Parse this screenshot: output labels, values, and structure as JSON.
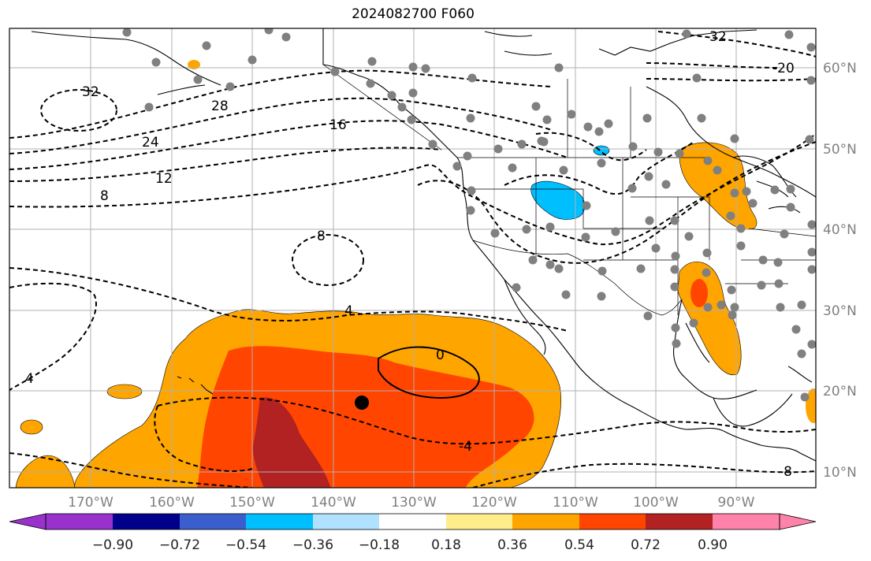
{
  "title": "2024082700 F060",
  "lon_labels": [
    "170°W",
    "160°W",
    "150°W",
    "140°W",
    "130°W",
    "120°W",
    "110°W",
    "100°W",
    "90°W"
  ],
  "lat_labels": [
    "60°N",
    "50°N",
    "40°N",
    "30°N",
    "20°N",
    "10°N"
  ],
  "colorbar": {
    "colors": [
      "#9932cc",
      "#00008b",
      "#3a5fcd",
      "#00bfff",
      "#b0e2ff",
      "#ffffff",
      "#ffec8b",
      "#ffa500",
      "#ff4500",
      "#b22222",
      "#ff82ab"
    ],
    "tick_labels": [
      "−0.90",
      "−0.72",
      "−0.54",
      "−0.36",
      "−0.18",
      "0.18",
      "0.36",
      "0.54",
      "0.72",
      "0.90"
    ]
  },
  "contour_labels": [
    "32",
    "28",
    "24",
    "16",
    "12",
    "8",
    "8",
    "4",
    "4",
    "0",
    "-4",
    "-20",
    "32",
    "-8"
  ],
  "marker_color": "#808080",
  "center_marker": "#000000"
}
